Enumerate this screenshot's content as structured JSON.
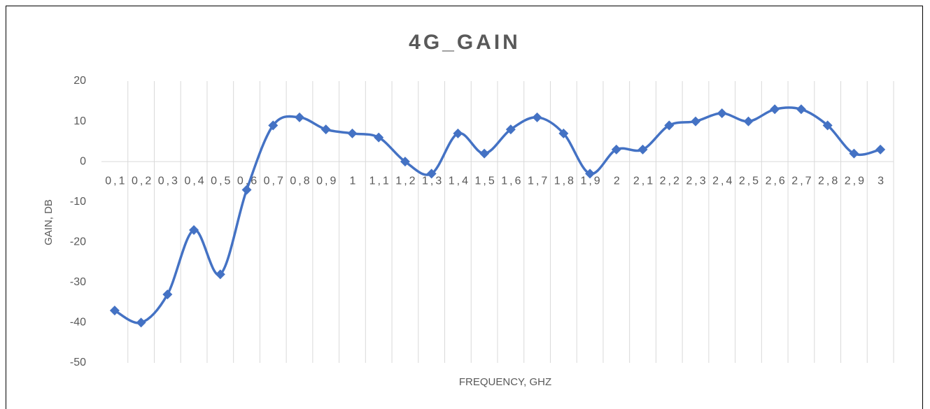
{
  "chart_data": {
    "type": "line",
    "title": "4G_GAIN",
    "x_label": "FREQUENCY, GHZ",
    "y_label": "GAIN, DB",
    "categories": [
      "0,1",
      "0,2",
      "0,3",
      "0,4",
      "0,5",
      "0,6",
      "0,7",
      "0,8",
      "0,9",
      "1",
      "1,1",
      "1,2",
      "1,3",
      "1,4",
      "1,5",
      "1,6",
      "1,7",
      "1,8",
      "1,9",
      "2",
      "2,1",
      "2,2",
      "2,3",
      "2,4",
      "2,5",
      "2,6",
      "2,7",
      "2,8",
      "2,9",
      "3"
    ],
    "series": [
      {
        "name": "GAIN",
        "color": "#4472c4",
        "values": [
          -37,
          -40,
          -33,
          -17,
          -28,
          -7,
          9,
          11,
          8,
          7,
          6,
          0,
          -3,
          7,
          2,
          8,
          11,
          7,
          -3,
          3,
          3,
          9,
          10,
          12,
          10,
          13,
          13,
          9,
          2,
          3
        ]
      }
    ],
    "ylim": [
      -50,
      20
    ],
    "yticks": [
      -50,
      -40,
      -30,
      -20,
      -10,
      0,
      10,
      20
    ],
    "grid": "vertical",
    "smooth": true
  }
}
